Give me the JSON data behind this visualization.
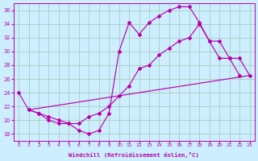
{
  "xlabel": "Windchill (Refroidissement éolien,°C)",
  "bg_color": "#cceeff",
  "grid_color": "#aaccbb",
  "line_color": "#bb00aa",
  "xlim": [
    -0.5,
    23.5
  ],
  "ylim": [
    17,
    37
  ],
  "yticks": [
    18,
    20,
    22,
    24,
    26,
    28,
    30,
    32,
    34,
    36
  ],
  "xticks": [
    0,
    1,
    2,
    3,
    4,
    5,
    6,
    7,
    8,
    9,
    10,
    11,
    12,
    13,
    14,
    15,
    16,
    17,
    18,
    19,
    20,
    21,
    22,
    23
  ],
  "curve1_x": [
    0,
    1,
    2,
    3,
    4,
    5,
    6,
    7,
    8,
    9,
    10,
    11,
    12,
    13,
    14,
    15,
    16,
    17,
    18,
    19,
    20,
    21,
    22
  ],
  "curve1_y": [
    24,
    21.5,
    21,
    20.5,
    20,
    19.5,
    18.5,
    18,
    18.5,
    21,
    30,
    34.2,
    32.5,
    34.2,
    35.2,
    36,
    36.5,
    36.5,
    34.2,
    31.5,
    29,
    29,
    26.5
  ],
  "curve2_x": [
    1,
    2,
    3,
    4,
    5,
    6,
    7,
    8,
    9,
    10,
    11,
    12,
    13,
    14,
    15,
    16,
    17,
    18,
    19,
    20,
    21,
    22,
    23
  ],
  "curve2_y": [
    21.5,
    21,
    20,
    19.5,
    19.5,
    19.5,
    20.5,
    21,
    22,
    23.5,
    25,
    27.5,
    28,
    29.5,
    30.5,
    31.5,
    32,
    34,
    31.5,
    31.5,
    29,
    29,
    26.5
  ],
  "curve3_x": [
    1,
    23
  ],
  "curve3_y": [
    21.5,
    26.5
  ]
}
